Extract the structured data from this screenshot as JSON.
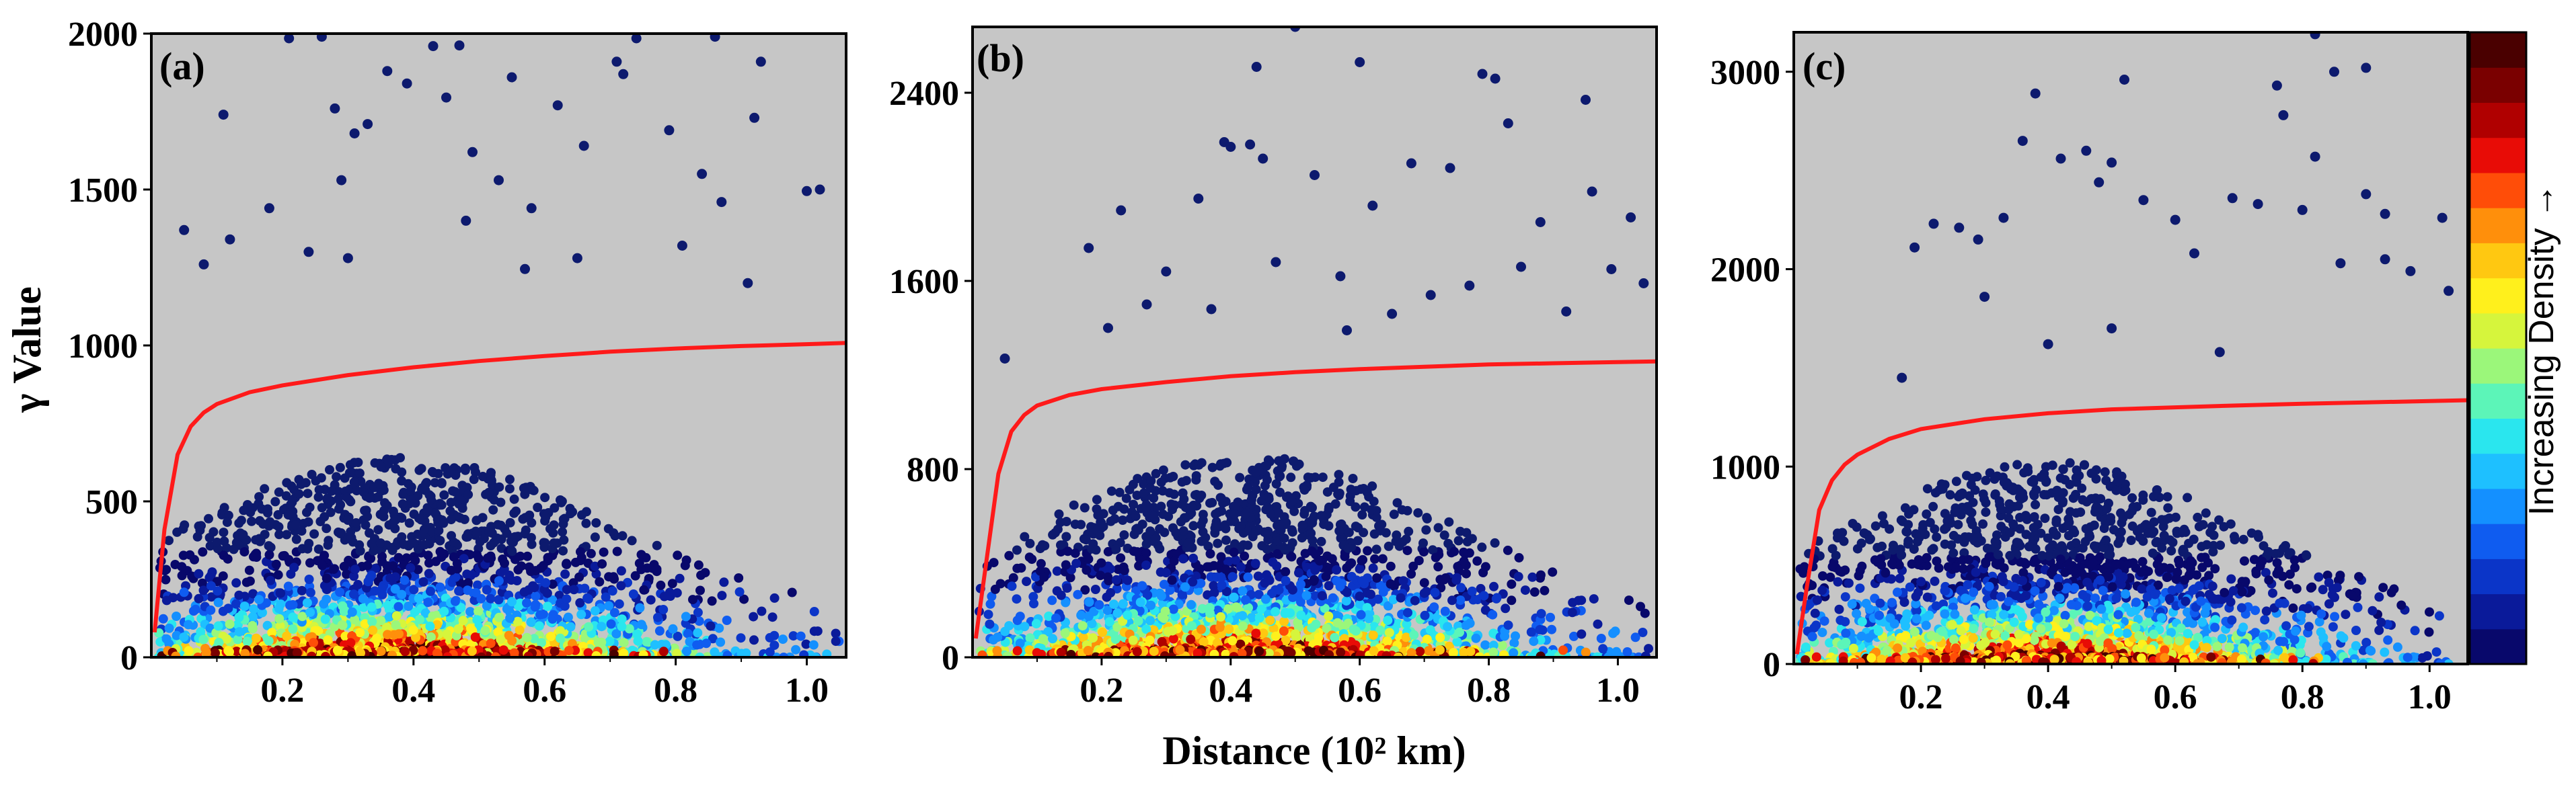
{
  "figure": {
    "ylabel": "γ Value",
    "xlabel": "Distance (10² km)",
    "colorbar_label": "Increasing Density →",
    "colors": {
      "panel_bg": "#c6c6c6",
      "fit_line": "#ff1a1a",
      "sparse_point": "#0d1a6e",
      "colormap": [
        "#08086b",
        "#0a1a9a",
        "#0b35c8",
        "#0f5cf0",
        "#1490ff",
        "#1ec0ff",
        "#2ae6ee",
        "#5cf5b8",
        "#9bf77a",
        "#d6f53c",
        "#fff01c",
        "#ffc811",
        "#ff8f0b",
        "#ff4d08",
        "#e80c06",
        "#b00000",
        "#7a0000",
        "#4a0000"
      ]
    }
  },
  "chart_data": [
    {
      "panel": "(a)",
      "type": "scatter",
      "xlim": [
        0,
        1.06
      ],
      "ylim": [
        0,
        2000
      ],
      "xticks": [
        0.2,
        0.4,
        0.6,
        0.8,
        1.0
      ],
      "xtick_labels": [
        "0.2",
        "0.4",
        "0.6",
        "0.8",
        "1.0"
      ],
      "yticks": [
        0,
        500,
        1000,
        1500,
        2000
      ],
      "ytick_labels": [
        "0",
        "500",
        "1000",
        "1500",
        "2000"
      ],
      "density_peak_x": 0.38,
      "fit_curve": {
        "x": [
          0.005,
          0.02,
          0.04,
          0.06,
          0.08,
          0.1,
          0.15,
          0.2,
          0.3,
          0.4,
          0.5,
          0.6,
          0.7,
          0.8,
          0.9,
          1.0,
          1.06
        ],
        "y": [
          80,
          410,
          650,
          740,
          785,
          812,
          850,
          872,
          905,
          930,
          950,
          966,
          980,
          990,
          998,
          1004,
          1008
        ]
      },
      "outliers": [
        {
          "x": 0.21,
          "y": 1985
        },
        {
          "x": 0.26,
          "y": 1990
        },
        {
          "x": 0.43,
          "y": 1960
        },
        {
          "x": 0.47,
          "y": 1962
        },
        {
          "x": 0.74,
          "y": 1985
        },
        {
          "x": 0.86,
          "y": 1990
        },
        {
          "x": 0.11,
          "y": 1740
        },
        {
          "x": 0.28,
          "y": 1760
        },
        {
          "x": 0.36,
          "y": 1880
        },
        {
          "x": 0.39,
          "y": 1840
        },
        {
          "x": 0.45,
          "y": 1795
        },
        {
          "x": 0.55,
          "y": 1860
        },
        {
          "x": 0.62,
          "y": 1770
        },
        {
          "x": 0.71,
          "y": 1910
        },
        {
          "x": 0.72,
          "y": 1870
        },
        {
          "x": 0.93,
          "y": 1910
        },
        {
          "x": 0.31,
          "y": 1680
        },
        {
          "x": 0.33,
          "y": 1710
        },
        {
          "x": 0.49,
          "y": 1620
        },
        {
          "x": 0.53,
          "y": 1530
        },
        {
          "x": 0.66,
          "y": 1640
        },
        {
          "x": 0.79,
          "y": 1690
        },
        {
          "x": 0.92,
          "y": 1730
        },
        {
          "x": 0.18,
          "y": 1440
        },
        {
          "x": 0.29,
          "y": 1530
        },
        {
          "x": 0.58,
          "y": 1440
        },
        {
          "x": 0.84,
          "y": 1550
        },
        {
          "x": 0.87,
          "y": 1460
        },
        {
          "x": 1.0,
          "y": 1495
        },
        {
          "x": 1.02,
          "y": 1500
        },
        {
          "x": 0.05,
          "y": 1370
        },
        {
          "x": 0.08,
          "y": 1260
        },
        {
          "x": 0.12,
          "y": 1340
        },
        {
          "x": 0.24,
          "y": 1300
        },
        {
          "x": 0.3,
          "y": 1280
        },
        {
          "x": 0.48,
          "y": 1400
        },
        {
          "x": 0.57,
          "y": 1245
        },
        {
          "x": 0.65,
          "y": 1280
        },
        {
          "x": 0.81,
          "y": 1320
        },
        {
          "x": 0.91,
          "y": 1200
        }
      ]
    },
    {
      "panel": "(b)",
      "type": "scatter",
      "xlim": [
        0,
        1.06
      ],
      "ylim": [
        0,
        2680
      ],
      "xticks": [
        0.2,
        0.4,
        0.6,
        0.8,
        1.0
      ],
      "xtick_labels": [
        "0.2",
        "0.4",
        "0.6",
        "0.8",
        "1.0"
      ],
      "yticks": [
        0,
        800,
        1600,
        2400
      ],
      "ytick_labels": [
        "0",
        "800",
        "1600",
        "2400"
      ],
      "density_peak_x": 0.42,
      "fit_curve": {
        "x": [
          0.005,
          0.02,
          0.04,
          0.06,
          0.08,
          0.1,
          0.15,
          0.2,
          0.3,
          0.4,
          0.5,
          0.6,
          0.7,
          0.8,
          0.9,
          1.0,
          1.06
        ],
        "y": [
          80,
          380,
          780,
          960,
          1030,
          1070,
          1115,
          1140,
          1170,
          1195,
          1212,
          1225,
          1235,
          1245,
          1250,
          1255,
          1258
        ]
      },
      "outliers": [
        {
          "x": 0.5,
          "y": 2680
        },
        {
          "x": 0.44,
          "y": 2510
        },
        {
          "x": 0.79,
          "y": 2480
        },
        {
          "x": 0.81,
          "y": 2460
        },
        {
          "x": 0.6,
          "y": 2530
        },
        {
          "x": 0.95,
          "y": 2370
        },
        {
          "x": 0.83,
          "y": 2270
        },
        {
          "x": 0.39,
          "y": 2190
        },
        {
          "x": 0.4,
          "y": 2170
        },
        {
          "x": 0.43,
          "y": 2180
        },
        {
          "x": 0.45,
          "y": 2120
        },
        {
          "x": 0.53,
          "y": 2050
        },
        {
          "x": 0.68,
          "y": 2100
        },
        {
          "x": 0.74,
          "y": 2080
        },
        {
          "x": 0.96,
          "y": 1980
        },
        {
          "x": 0.23,
          "y": 1900
        },
        {
          "x": 0.35,
          "y": 1950
        },
        {
          "x": 0.62,
          "y": 1920
        },
        {
          "x": 0.88,
          "y": 1850
        },
        {
          "x": 1.02,
          "y": 1870
        },
        {
          "x": 0.18,
          "y": 1740
        },
        {
          "x": 0.3,
          "y": 1640
        },
        {
          "x": 0.47,
          "y": 1680
        },
        {
          "x": 0.57,
          "y": 1620
        },
        {
          "x": 0.77,
          "y": 1580
        },
        {
          "x": 0.85,
          "y": 1660
        },
        {
          "x": 0.99,
          "y": 1650
        },
        {
          "x": 1.04,
          "y": 1590
        },
        {
          "x": 0.27,
          "y": 1500
        },
        {
          "x": 0.37,
          "y": 1480
        },
        {
          "x": 0.65,
          "y": 1460
        },
        {
          "x": 0.71,
          "y": 1540
        },
        {
          "x": 0.92,
          "y": 1470
        },
        {
          "x": 0.05,
          "y": 1270
        },
        {
          "x": 0.21,
          "y": 1400
        },
        {
          "x": 0.58,
          "y": 1390
        }
      ]
    },
    {
      "panel": "(c)",
      "type": "scatter",
      "xlim": [
        0,
        1.06
      ],
      "ylim": [
        0,
        3200
      ],
      "xticks": [
        0.2,
        0.4,
        0.6,
        0.8,
        1.0
      ],
      "xtick_labels": [
        "0.2",
        "0.4",
        "0.6",
        "0.8",
        "1.0"
      ],
      "yticks": [
        0,
        1000,
        2000,
        3000
      ],
      "ytick_labels": [
        "0",
        "1000",
        "2000",
        "3000"
      ],
      "density_peak_x": 0.4,
      "fit_curve": {
        "x": [
          0.005,
          0.02,
          0.04,
          0.06,
          0.08,
          0.1,
          0.15,
          0.2,
          0.3,
          0.4,
          0.5,
          0.6,
          0.7,
          0.8,
          0.9,
          1.0,
          1.06
        ],
        "y": [
          50,
          380,
          780,
          930,
          1010,
          1060,
          1140,
          1190,
          1240,
          1270,
          1290,
          1300,
          1310,
          1318,
          1325,
          1332,
          1336
        ]
      },
      "outliers": [
        {
          "x": 0.82,
          "y": 3190
        },
        {
          "x": 0.9,
          "y": 3020
        },
        {
          "x": 0.85,
          "y": 3000
        },
        {
          "x": 0.52,
          "y": 2960
        },
        {
          "x": 0.76,
          "y": 2930
        },
        {
          "x": 0.77,
          "y": 2780
        },
        {
          "x": 0.38,
          "y": 2890
        },
        {
          "x": 0.36,
          "y": 2650
        },
        {
          "x": 0.46,
          "y": 2600
        },
        {
          "x": 0.42,
          "y": 2560
        },
        {
          "x": 0.5,
          "y": 2540
        },
        {
          "x": 0.82,
          "y": 2570
        },
        {
          "x": 0.48,
          "y": 2440
        },
        {
          "x": 0.55,
          "y": 2350
        },
        {
          "x": 0.69,
          "y": 2360
        },
        {
          "x": 0.73,
          "y": 2330
        },
        {
          "x": 0.8,
          "y": 2300
        },
        {
          "x": 0.9,
          "y": 2380
        },
        {
          "x": 0.93,
          "y": 2280
        },
        {
          "x": 1.02,
          "y": 2260
        },
        {
          "x": 0.22,
          "y": 2230
        },
        {
          "x": 0.26,
          "y": 2210
        },
        {
          "x": 0.33,
          "y": 2260
        },
        {
          "x": 0.6,
          "y": 2250
        },
        {
          "x": 0.19,
          "y": 2110
        },
        {
          "x": 0.29,
          "y": 2150
        },
        {
          "x": 0.63,
          "y": 2080
        },
        {
          "x": 0.86,
          "y": 2030
        },
        {
          "x": 0.93,
          "y": 2050
        },
        {
          "x": 0.97,
          "y": 1990
        },
        {
          "x": 0.3,
          "y": 1860
        },
        {
          "x": 0.5,
          "y": 1700
        },
        {
          "x": 1.03,
          "y": 1890
        },
        {
          "x": 0.17,
          "y": 1450
        },
        {
          "x": 0.4,
          "y": 1620
        },
        {
          "x": 0.67,
          "y": 1580
        }
      ]
    }
  ]
}
